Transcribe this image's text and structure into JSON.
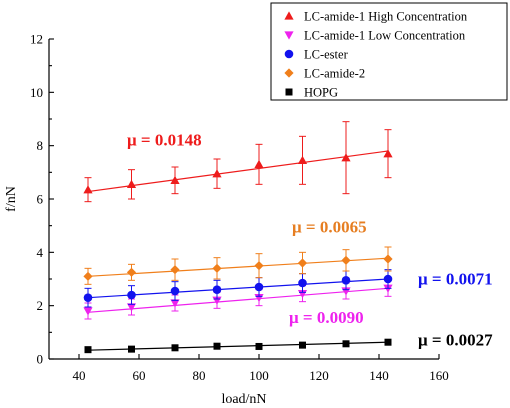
{
  "chart_data": {
    "type": "scatter",
    "xlabel": "load/nN",
    "ylabel": "f/nN",
    "xlim": [
      30,
      160
    ],
    "ylim": [
      0,
      12
    ],
    "xticks": [
      40,
      60,
      80,
      100,
      120,
      140,
      160
    ],
    "yticks": [
      0,
      2,
      4,
      6,
      8,
      10,
      12
    ],
    "legend_position": "top-right",
    "grid": false,
    "series": [
      {
        "name": "LC-amide-1 High Concentration",
        "color": "#ee1c1c",
        "marker": "triangle-up",
        "x": [
          43,
          57.5,
          72,
          86,
          100,
          114.5,
          129,
          143
        ],
        "y": [
          6.35,
          6.55,
          6.7,
          6.95,
          7.3,
          7.45,
          7.55,
          7.7
        ],
        "err": [
          0.45,
          0.55,
          0.5,
          0.55,
          0.75,
          0.9,
          1.35,
          0.9
        ],
        "fit": [
          6.28,
          7.8
        ]
      },
      {
        "name": "LC-amide-1 Low Concentration",
        "color": "#ee22ee",
        "marker": "triangle-down",
        "x": [
          43,
          57.5,
          72,
          86,
          100,
          114.5,
          129,
          143
        ],
        "y": [
          1.8,
          1.95,
          2.1,
          2.2,
          2.3,
          2.45,
          2.55,
          2.65
        ],
        "err": [
          0.3,
          0.3,
          0.3,
          0.3,
          0.3,
          0.3,
          0.3,
          0.3
        ],
        "fit": [
          1.75,
          2.65
        ]
      },
      {
        "name": "LC-ester",
        "color": "#1212ee",
        "marker": "circle",
        "x": [
          43,
          57.5,
          72,
          86,
          100,
          114.5,
          129,
          143
        ],
        "y": [
          2.3,
          2.4,
          2.55,
          2.6,
          2.7,
          2.85,
          2.95,
          3.0
        ],
        "err": [
          0.35,
          0.35,
          0.35,
          0.35,
          0.35,
          0.35,
          0.35,
          0.35
        ],
        "fit": [
          2.3,
          3.0
        ]
      },
      {
        "name": "LC-amide-2",
        "color": "#f07f1b",
        "marker": "diamond",
        "x": [
          43,
          57.5,
          72,
          86,
          100,
          114.5,
          129,
          143
        ],
        "y": [
          3.1,
          3.25,
          3.35,
          3.4,
          3.5,
          3.6,
          3.7,
          3.75
        ],
        "err": [
          0.3,
          0.3,
          0.4,
          0.4,
          0.45,
          0.4,
          0.4,
          0.45
        ],
        "fit": [
          3.1,
          3.78
        ]
      },
      {
        "name": "HOPG",
        "color": "#000000",
        "marker": "square",
        "x": [
          43,
          57.5,
          72,
          86,
          100,
          114.5,
          129,
          143
        ],
        "y": [
          0.35,
          0.37,
          0.42,
          0.48,
          0.47,
          0.52,
          0.57,
          0.63
        ],
        "err": [
          0,
          0,
          0,
          0,
          0,
          0,
          0,
          0
        ],
        "fit": [
          0.33,
          0.63
        ]
      }
    ],
    "annotations": [
      {
        "text": "μ = 0.0148",
        "color": "#ee1c1c",
        "x": 56,
        "y": 8.0
      },
      {
        "text": "μ = 0.0065",
        "color": "#e67e22",
        "x": 111,
        "y": 4.75
      },
      {
        "text": "μ = 0.0071",
        "color": "#1212ee",
        "x": 153,
        "y": 2.8
      },
      {
        "text": "μ = 0.0090",
        "color": "#ee22ee",
        "x": 110,
        "y": 1.35
      },
      {
        "text": "μ = 0.0027",
        "color": "#000000",
        "x": 153,
        "y": 0.5
      }
    ]
  }
}
